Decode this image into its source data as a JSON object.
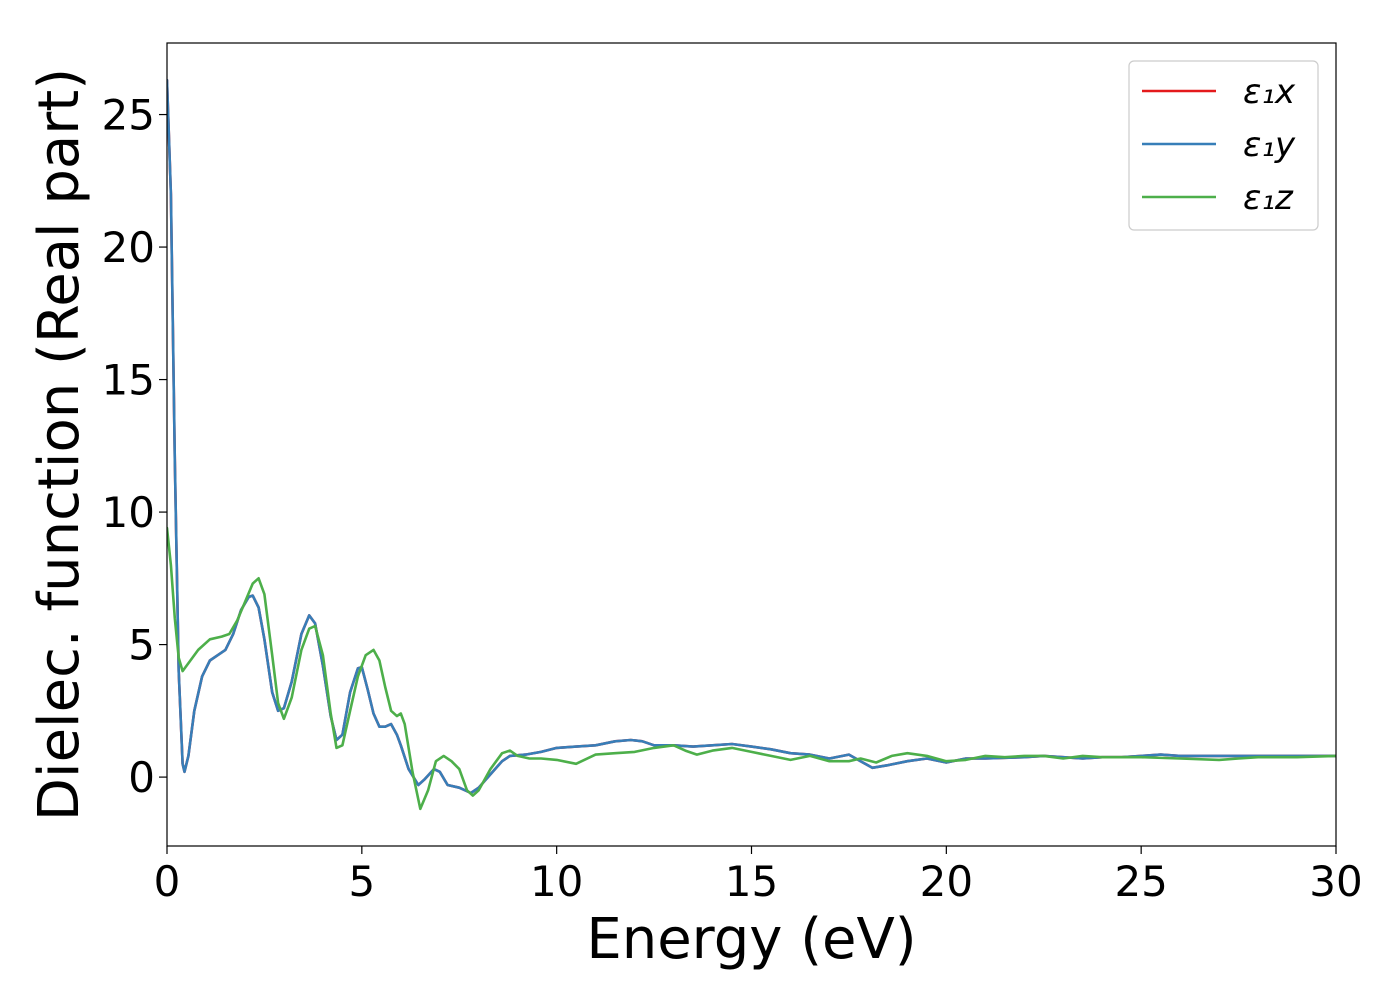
{
  "chart_data": {
    "type": "line",
    "title": "",
    "xlabel": "Energy (eV)",
    "ylabel": "Dielec. function (Real part)",
    "xlim": [
      0,
      30
    ],
    "ylim": [
      -2.6,
      27.7
    ],
    "x_ticks": [
      0,
      5,
      10,
      15,
      20,
      25,
      30
    ],
    "y_ticks": [
      0,
      5,
      10,
      15,
      20,
      25
    ],
    "grid": false,
    "legend_position": "top-right",
    "series": [
      {
        "name": "ε₁x",
        "color": "#e41a1c",
        "points": [
          [
            0,
            26.3
          ],
          [
            0.1,
            22
          ],
          [
            0.2,
            12
          ],
          [
            0.3,
            4
          ],
          [
            0.4,
            0.5
          ],
          [
            0.45,
            0.2
          ],
          [
            0.55,
            0.8
          ],
          [
            0.7,
            2.5
          ],
          [
            0.9,
            3.8
          ],
          [
            1.1,
            4.4
          ],
          [
            1.3,
            4.6
          ],
          [
            1.5,
            4.8
          ],
          [
            1.7,
            5.4
          ],
          [
            1.9,
            6.3
          ],
          [
            2.1,
            6.8
          ],
          [
            2.2,
            6.85
          ],
          [
            2.35,
            6.4
          ],
          [
            2.5,
            5.2
          ],
          [
            2.7,
            3.2
          ],
          [
            2.85,
            2.5
          ],
          [
            3.0,
            2.6
          ],
          [
            3.2,
            3.6
          ],
          [
            3.45,
            5.4
          ],
          [
            3.65,
            6.1
          ],
          [
            3.8,
            5.8
          ],
          [
            4.0,
            4.2
          ],
          [
            4.2,
            2.3
          ],
          [
            4.35,
            1.4
          ],
          [
            4.5,
            1.6
          ],
          [
            4.7,
            3.2
          ],
          [
            4.9,
            4.1
          ],
          [
            5.0,
            4.15
          ],
          [
            5.15,
            3.3
          ],
          [
            5.3,
            2.4
          ],
          [
            5.45,
            1.9
          ],
          [
            5.6,
            1.9
          ],
          [
            5.75,
            2.0
          ],
          [
            5.9,
            1.6
          ],
          [
            6.0,
            1.2
          ],
          [
            6.2,
            0.3
          ],
          [
            6.45,
            -0.3
          ],
          [
            6.6,
            -0.1
          ],
          [
            6.85,
            0.3
          ],
          [
            7.0,
            0.2
          ],
          [
            7.2,
            -0.3
          ],
          [
            7.5,
            -0.4
          ],
          [
            7.8,
            -0.6
          ],
          [
            8.0,
            -0.4
          ],
          [
            8.3,
            0.1
          ],
          [
            8.6,
            0.6
          ],
          [
            8.8,
            0.8
          ],
          [
            9.2,
            0.85
          ],
          [
            9.6,
            0.95
          ],
          [
            10.0,
            1.1
          ],
          [
            10.5,
            1.15
          ],
          [
            11.0,
            1.2
          ],
          [
            11.5,
            1.35
          ],
          [
            11.9,
            1.4
          ],
          [
            12.2,
            1.35
          ],
          [
            12.5,
            1.2
          ],
          [
            13.0,
            1.2
          ],
          [
            13.5,
            1.15
          ],
          [
            14.0,
            1.2
          ],
          [
            14.5,
            1.25
          ],
          [
            15.0,
            1.15
          ],
          [
            15.5,
            1.05
          ],
          [
            16.0,
            0.9
          ],
          [
            16.5,
            0.85
          ],
          [
            17.0,
            0.7
          ],
          [
            17.5,
            0.85
          ],
          [
            17.8,
            0.6
          ],
          [
            18.1,
            0.35
          ],
          [
            18.5,
            0.45
          ],
          [
            19.0,
            0.6
          ],
          [
            19.5,
            0.7
          ],
          [
            20.0,
            0.55
          ],
          [
            20.5,
            0.7
          ],
          [
            21.0,
            0.7
          ],
          [
            22.0,
            0.75
          ],
          [
            22.5,
            0.8
          ],
          [
            23.0,
            0.75
          ],
          [
            23.5,
            0.7
          ],
          [
            24.0,
            0.75
          ],
          [
            24.5,
            0.75
          ],
          [
            25.0,
            0.8
          ],
          [
            25.5,
            0.85
          ],
          [
            26.0,
            0.8
          ],
          [
            26.5,
            0.8
          ],
          [
            27.0,
            0.8
          ],
          [
            28.0,
            0.8
          ],
          [
            29.0,
            0.8
          ],
          [
            30.0,
            0.8
          ]
        ]
      },
      {
        "name": "ε₁y",
        "color": "#377eb8",
        "points": [
          [
            0,
            26.3
          ],
          [
            0.1,
            22
          ],
          [
            0.2,
            12
          ],
          [
            0.3,
            4
          ],
          [
            0.4,
            0.5
          ],
          [
            0.45,
            0.2
          ],
          [
            0.55,
            0.8
          ],
          [
            0.7,
            2.5
          ],
          [
            0.9,
            3.8
          ],
          [
            1.1,
            4.4
          ],
          [
            1.3,
            4.6
          ],
          [
            1.5,
            4.8
          ],
          [
            1.7,
            5.4
          ],
          [
            1.9,
            6.3
          ],
          [
            2.1,
            6.8
          ],
          [
            2.2,
            6.85
          ],
          [
            2.35,
            6.4
          ],
          [
            2.5,
            5.2
          ],
          [
            2.7,
            3.2
          ],
          [
            2.85,
            2.5
          ],
          [
            3.0,
            2.6
          ],
          [
            3.2,
            3.6
          ],
          [
            3.45,
            5.4
          ],
          [
            3.65,
            6.1
          ],
          [
            3.8,
            5.8
          ],
          [
            4.0,
            4.2
          ],
          [
            4.2,
            2.3
          ],
          [
            4.35,
            1.4
          ],
          [
            4.5,
            1.6
          ],
          [
            4.7,
            3.2
          ],
          [
            4.9,
            4.1
          ],
          [
            5.0,
            4.15
          ],
          [
            5.15,
            3.3
          ],
          [
            5.3,
            2.4
          ],
          [
            5.45,
            1.9
          ],
          [
            5.6,
            1.9
          ],
          [
            5.75,
            2.0
          ],
          [
            5.9,
            1.6
          ],
          [
            6.0,
            1.2
          ],
          [
            6.2,
            0.3
          ],
          [
            6.45,
            -0.3
          ],
          [
            6.6,
            -0.1
          ],
          [
            6.85,
            0.3
          ],
          [
            7.0,
            0.2
          ],
          [
            7.2,
            -0.3
          ],
          [
            7.5,
            -0.4
          ],
          [
            7.8,
            -0.6
          ],
          [
            8.0,
            -0.4
          ],
          [
            8.3,
            0.1
          ],
          [
            8.6,
            0.6
          ],
          [
            8.8,
            0.8
          ],
          [
            9.2,
            0.85
          ],
          [
            9.6,
            0.95
          ],
          [
            10.0,
            1.1
          ],
          [
            10.5,
            1.15
          ],
          [
            11.0,
            1.2
          ],
          [
            11.5,
            1.35
          ],
          [
            11.9,
            1.4
          ],
          [
            12.2,
            1.35
          ],
          [
            12.5,
            1.2
          ],
          [
            13.0,
            1.2
          ],
          [
            13.5,
            1.15
          ],
          [
            14.0,
            1.2
          ],
          [
            14.5,
            1.25
          ],
          [
            15.0,
            1.15
          ],
          [
            15.5,
            1.05
          ],
          [
            16.0,
            0.9
          ],
          [
            16.5,
            0.85
          ],
          [
            17.0,
            0.7
          ],
          [
            17.5,
            0.85
          ],
          [
            17.8,
            0.6
          ],
          [
            18.1,
            0.35
          ],
          [
            18.5,
            0.45
          ],
          [
            19.0,
            0.6
          ],
          [
            19.5,
            0.7
          ],
          [
            20.0,
            0.55
          ],
          [
            20.5,
            0.7
          ],
          [
            21.0,
            0.7
          ],
          [
            22.0,
            0.75
          ],
          [
            22.5,
            0.8
          ],
          [
            23.0,
            0.75
          ],
          [
            23.5,
            0.7
          ],
          [
            24.0,
            0.75
          ],
          [
            24.5,
            0.75
          ],
          [
            25.0,
            0.8
          ],
          [
            25.5,
            0.85
          ],
          [
            26.0,
            0.8
          ],
          [
            26.5,
            0.8
          ],
          [
            27.0,
            0.8
          ],
          [
            28.0,
            0.8
          ],
          [
            29.0,
            0.8
          ],
          [
            30.0,
            0.8
          ]
        ]
      },
      {
        "name": "ε₁z",
        "color": "#4daf4a",
        "points": [
          [
            0,
            9.4
          ],
          [
            0.1,
            8.0
          ],
          [
            0.2,
            6.0
          ],
          [
            0.3,
            4.5
          ],
          [
            0.4,
            4.0
          ],
          [
            0.6,
            4.4
          ],
          [
            0.8,
            4.8
          ],
          [
            1.1,
            5.2
          ],
          [
            1.4,
            5.3
          ],
          [
            1.6,
            5.4
          ],
          [
            1.8,
            5.9
          ],
          [
            2.0,
            6.6
          ],
          [
            2.2,
            7.3
          ],
          [
            2.35,
            7.5
          ],
          [
            2.5,
            6.9
          ],
          [
            2.7,
            4.6
          ],
          [
            2.85,
            2.8
          ],
          [
            3.0,
            2.2
          ],
          [
            3.2,
            3.0
          ],
          [
            3.45,
            4.8
          ],
          [
            3.65,
            5.6
          ],
          [
            3.8,
            5.7
          ],
          [
            4.0,
            4.6
          ],
          [
            4.2,
            2.4
          ],
          [
            4.35,
            1.1
          ],
          [
            4.5,
            1.2
          ],
          [
            4.7,
            2.5
          ],
          [
            4.9,
            3.8
          ],
          [
            5.1,
            4.6
          ],
          [
            5.3,
            4.8
          ],
          [
            5.45,
            4.4
          ],
          [
            5.6,
            3.4
          ],
          [
            5.75,
            2.5
          ],
          [
            5.9,
            2.3
          ],
          [
            6.0,
            2.4
          ],
          [
            6.1,
            2.0
          ],
          [
            6.3,
            0.2
          ],
          [
            6.5,
            -1.2
          ],
          [
            6.7,
            -0.5
          ],
          [
            6.9,
            0.6
          ],
          [
            7.1,
            0.8
          ],
          [
            7.3,
            0.6
          ],
          [
            7.5,
            0.3
          ],
          [
            7.7,
            -0.5
          ],
          [
            7.85,
            -0.7
          ],
          [
            8.0,
            -0.5
          ],
          [
            8.3,
            0.3
          ],
          [
            8.6,
            0.9
          ],
          [
            8.8,
            1.0
          ],
          [
            9.0,
            0.8
          ],
          [
            9.3,
            0.7
          ],
          [
            9.6,
            0.7
          ],
          [
            10.0,
            0.65
          ],
          [
            10.5,
            0.5
          ],
          [
            11.0,
            0.85
          ],
          [
            11.5,
            0.9
          ],
          [
            12.0,
            0.95
          ],
          [
            12.5,
            1.1
          ],
          [
            13.0,
            1.2
          ],
          [
            13.3,
            1.0
          ],
          [
            13.6,
            0.85
          ],
          [
            14.0,
            1.0
          ],
          [
            14.5,
            1.1
          ],
          [
            15.0,
            0.95
          ],
          [
            15.5,
            0.8
          ],
          [
            16.0,
            0.65
          ],
          [
            16.5,
            0.8
          ],
          [
            17.0,
            0.6
          ],
          [
            17.5,
            0.6
          ],
          [
            17.8,
            0.7
          ],
          [
            18.2,
            0.55
          ],
          [
            18.6,
            0.8
          ],
          [
            19.0,
            0.9
          ],
          [
            19.5,
            0.8
          ],
          [
            20.0,
            0.6
          ],
          [
            20.5,
            0.65
          ],
          [
            21.0,
            0.8
          ],
          [
            21.5,
            0.75
          ],
          [
            22.0,
            0.8
          ],
          [
            22.5,
            0.8
          ],
          [
            23.0,
            0.7
          ],
          [
            23.5,
            0.8
          ],
          [
            24.0,
            0.75
          ],
          [
            25.0,
            0.75
          ],
          [
            26.0,
            0.7
          ],
          [
            27.0,
            0.65
          ],
          [
            27.5,
            0.7
          ],
          [
            28.0,
            0.75
          ],
          [
            29.0,
            0.75
          ],
          [
            30.0,
            0.8
          ]
        ]
      }
    ]
  }
}
